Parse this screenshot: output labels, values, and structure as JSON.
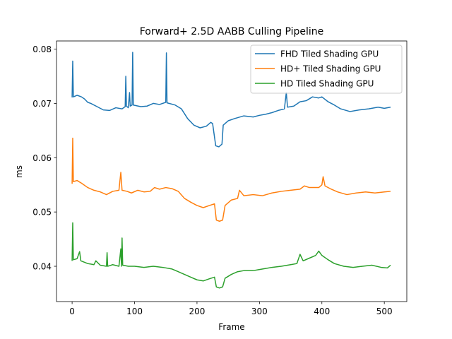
{
  "chart_data": {
    "type": "line",
    "title": "Forward+ 2.5D AABB Culling Pipeline",
    "xlabel": "Frame",
    "ylabel": "ms",
    "xlim": [
      -25,
      536
    ],
    "ylim": [
      0.0335,
      0.0815
    ],
    "xticks": [
      0,
      100,
      200,
      300,
      400,
      500
    ],
    "yticks": [
      0.04,
      0.05,
      0.06,
      0.07,
      0.08
    ],
    "ytick_labels": [
      "0.04",
      "0.05",
      "0.06",
      "0.07",
      "0.08"
    ],
    "grid": false,
    "legend_position": "upper right",
    "series": [
      {
        "name": "FHD Tiled Shading GPU",
        "color": "#1f77b4",
        "points": [
          [
            0,
            0.0711
          ],
          [
            1,
            0.0778
          ],
          [
            2,
            0.0712
          ],
          [
            8,
            0.0715
          ],
          [
            15,
            0.0712
          ],
          [
            20,
            0.0708
          ],
          [
            25,
            0.0702
          ],
          [
            30,
            0.07
          ],
          [
            40,
            0.0694
          ],
          [
            50,
            0.0688
          ],
          [
            60,
            0.0687
          ],
          [
            70,
            0.0692
          ],
          [
            80,
            0.069
          ],
          [
            85,
            0.0694
          ],
          [
            86,
            0.075
          ],
          [
            87,
            0.0695
          ],
          [
            90,
            0.0692
          ],
          [
            92,
            0.072
          ],
          [
            93,
            0.0695
          ],
          [
            96,
            0.0697
          ],
          [
            97,
            0.0794
          ],
          [
            98,
            0.0697
          ],
          [
            110,
            0.0694
          ],
          [
            120,
            0.0695
          ],
          [
            130,
            0.07
          ],
          [
            140,
            0.0698
          ],
          [
            150,
            0.0702
          ],
          [
            151,
            0.0793
          ],
          [
            152,
            0.0701
          ],
          [
            165,
            0.0697
          ],
          [
            175,
            0.069
          ],
          [
            185,
            0.0672
          ],
          [
            195,
            0.066
          ],
          [
            205,
            0.0655
          ],
          [
            215,
            0.0658
          ],
          [
            222,
            0.0665
          ],
          [
            225,
            0.0663
          ],
          [
            230,
            0.0622
          ],
          [
            235,
            0.062
          ],
          [
            240,
            0.0625
          ],
          [
            242,
            0.066
          ],
          [
            250,
            0.0668
          ],
          [
            260,
            0.0672
          ],
          [
            275,
            0.0677
          ],
          [
            290,
            0.0675
          ],
          [
            300,
            0.0678
          ],
          [
            310,
            0.068
          ],
          [
            320,
            0.0683
          ],
          [
            330,
            0.0687
          ],
          [
            340,
            0.069
          ],
          [
            343,
            0.072
          ],
          [
            345,
            0.0693
          ],
          [
            355,
            0.0695
          ],
          [
            365,
            0.0703
          ],
          [
            375,
            0.0705
          ],
          [
            385,
            0.0712
          ],
          [
            395,
            0.071
          ],
          [
            400,
            0.0712
          ],
          [
            410,
            0.0703
          ],
          [
            420,
            0.0697
          ],
          [
            430,
            0.069
          ],
          [
            445,
            0.0685
          ],
          [
            460,
            0.0688
          ],
          [
            475,
            0.069
          ],
          [
            490,
            0.0693
          ],
          [
            500,
            0.0691
          ],
          [
            510,
            0.0693
          ]
        ]
      },
      {
        "name": "HD+ Tiled Shading GPU",
        "color": "#ff7f0e",
        "points": [
          [
            0,
            0.0552
          ],
          [
            1,
            0.0636
          ],
          [
            2,
            0.0556
          ],
          [
            8,
            0.0558
          ],
          [
            15,
            0.0553
          ],
          [
            25,
            0.0545
          ],
          [
            35,
            0.054
          ],
          [
            45,
            0.0537
          ],
          [
            55,
            0.0532
          ],
          [
            65,
            0.0538
          ],
          [
            75,
            0.054
          ],
          [
            78,
            0.0573
          ],
          [
            80,
            0.054
          ],
          [
            88,
            0.0538
          ],
          [
            95,
            0.0535
          ],
          [
            105,
            0.054
          ],
          [
            115,
            0.0537
          ],
          [
            125,
            0.0538
          ],
          [
            132,
            0.0545
          ],
          [
            140,
            0.0542
          ],
          [
            150,
            0.0545
          ],
          [
            160,
            0.0543
          ],
          [
            170,
            0.0538
          ],
          [
            180,
            0.0525
          ],
          [
            190,
            0.0518
          ],
          [
            200,
            0.0512
          ],
          [
            210,
            0.0508
          ],
          [
            220,
            0.0512
          ],
          [
            228,
            0.0515
          ],
          [
            231,
            0.0485
          ],
          [
            236,
            0.0483
          ],
          [
            241,
            0.0485
          ],
          [
            245,
            0.0512
          ],
          [
            255,
            0.0522
          ],
          [
            265,
            0.0525
          ],
          [
            268,
            0.054
          ],
          [
            275,
            0.053
          ],
          [
            290,
            0.0532
          ],
          [
            305,
            0.053
          ],
          [
            320,
            0.0535
          ],
          [
            335,
            0.0538
          ],
          [
            350,
            0.054
          ],
          [
            365,
            0.0542
          ],
          [
            372,
            0.0548
          ],
          [
            380,
            0.0545
          ],
          [
            395,
            0.0545
          ],
          [
            400,
            0.055
          ],
          [
            402,
            0.0565
          ],
          [
            405,
            0.0548
          ],
          [
            415,
            0.0542
          ],
          [
            425,
            0.0537
          ],
          [
            440,
            0.0532
          ],
          [
            455,
            0.0535
          ],
          [
            470,
            0.0537
          ],
          [
            485,
            0.0535
          ],
          [
            500,
            0.0537
          ],
          [
            510,
            0.0538
          ]
        ]
      },
      {
        "name": "HD Tiled Shading GPU",
        "color": "#2ca02c",
        "points": [
          [
            0,
            0.041
          ],
          [
            1,
            0.048
          ],
          [
            2,
            0.0412
          ],
          [
            8,
            0.0414
          ],
          [
            12,
            0.0427
          ],
          [
            14,
            0.041
          ],
          [
            25,
            0.0405
          ],
          [
            35,
            0.0403
          ],
          [
            38,
            0.041
          ],
          [
            45,
            0.0402
          ],
          [
            55,
            0.04
          ],
          [
            56,
            0.0425
          ],
          [
            57,
            0.04
          ],
          [
            65,
            0.0403
          ],
          [
            75,
            0.04
          ],
          [
            78,
            0.0432
          ],
          [
            79,
            0.04
          ],
          [
            80,
            0.0452
          ],
          [
            81,
            0.0402
          ],
          [
            90,
            0.04
          ],
          [
            100,
            0.04
          ],
          [
            115,
            0.0398
          ],
          [
            130,
            0.04
          ],
          [
            145,
            0.0398
          ],
          [
            160,
            0.0395
          ],
          [
            170,
            0.039
          ],
          [
            180,
            0.0385
          ],
          [
            190,
            0.038
          ],
          [
            200,
            0.0375
          ],
          [
            210,
            0.0373
          ],
          [
            220,
            0.0377
          ],
          [
            228,
            0.038
          ],
          [
            231,
            0.0362
          ],
          [
            236,
            0.036
          ],
          [
            241,
            0.0362
          ],
          [
            245,
            0.0378
          ],
          [
            255,
            0.0385
          ],
          [
            265,
            0.039
          ],
          [
            275,
            0.0392
          ],
          [
            290,
            0.0392
          ],
          [
            305,
            0.0395
          ],
          [
            320,
            0.0398
          ],
          [
            335,
            0.04
          ],
          [
            350,
            0.0403
          ],
          [
            360,
            0.0405
          ],
          [
            365,
            0.0422
          ],
          [
            370,
            0.041
          ],
          [
            380,
            0.0415
          ],
          [
            390,
            0.042
          ],
          [
            395,
            0.0428
          ],
          [
            400,
            0.042
          ],
          [
            410,
            0.0412
          ],
          [
            420,
            0.0405
          ],
          [
            435,
            0.04
          ],
          [
            450,
            0.0398
          ],
          [
            465,
            0.04
          ],
          [
            480,
            0.0402
          ],
          [
            495,
            0.0398
          ],
          [
            505,
            0.0397
          ],
          [
            510,
            0.0402
          ]
        ]
      }
    ]
  }
}
